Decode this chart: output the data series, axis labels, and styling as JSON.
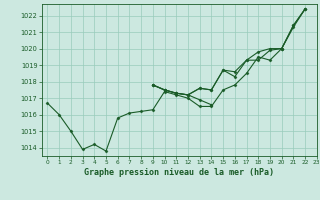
{
  "title": "Graphe pression niveau de la mer (hPa)",
  "background_color": "#cce8e0",
  "grid_color": "#99ccbb",
  "line_color": "#1a5c28",
  "marker_color": "#1a5c28",
  "xlim": [
    -0.5,
    23
  ],
  "ylim": [
    1013.5,
    1022.7
  ],
  "yticks": [
    1014,
    1015,
    1016,
    1017,
    1018,
    1019,
    1020,
    1021,
    1022
  ],
  "xticks": [
    0,
    1,
    2,
    3,
    4,
    5,
    6,
    7,
    8,
    9,
    10,
    11,
    12,
    13,
    14,
    15,
    16,
    17,
    18,
    19,
    20,
    21,
    22,
    23
  ],
  "series": [
    [
      1016.7,
      1016.0,
      1015.0,
      1013.9,
      1014.2,
      1013.8,
      1015.8,
      1016.1,
      1016.2,
      1016.3,
      1017.4,
      1017.2,
      1017.0,
      1016.5,
      1016.5,
      1017.5,
      1017.8,
      1018.5,
      1019.5,
      1019.3,
      1020.0,
      1021.3,
      1022.4,
      null
    ],
    [
      null,
      null,
      null,
      null,
      null,
      null,
      null,
      null,
      null,
      1017.8,
      1017.5,
      1017.3,
      1017.2,
      1016.9,
      1016.6,
      null,
      null,
      null,
      null,
      null,
      null,
      null,
      null,
      null
    ],
    [
      null,
      null,
      null,
      null,
      null,
      null,
      null,
      null,
      null,
      1017.8,
      1017.5,
      1017.3,
      1017.2,
      1017.6,
      1017.5,
      1018.7,
      1018.3,
      1019.3,
      1019.3,
      1019.9,
      1020.0,
      1021.4,
      1022.4,
      null
    ],
    [
      null,
      null,
      null,
      null,
      null,
      null,
      null,
      null,
      null,
      1017.8,
      1017.5,
      1017.3,
      1017.2,
      1017.6,
      1017.5,
      1018.7,
      1018.6,
      1019.3,
      1019.8,
      1020.0,
      1020.0,
      1021.4,
      1022.4,
      null
    ]
  ]
}
